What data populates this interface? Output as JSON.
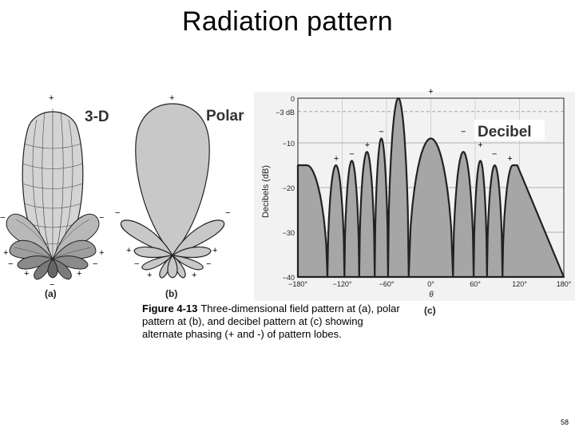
{
  "slide": {
    "title": "Radiation pattern",
    "page_number": "58"
  },
  "panels": {
    "a": {
      "title": "3-D",
      "label": "(a)"
    },
    "b": {
      "title": "Polar",
      "label": "(b)"
    },
    "c": {
      "title": "Decibel",
      "label": "(c)"
    }
  },
  "caption": {
    "figure_number": "Figure 4-13",
    "text": "Three-dimensional field pattern at (a), polar pattern at (b), and decibel pattern at (c) showing alternate phasing (+ and -) of pattern lobes."
  },
  "chart_data": {
    "type": "area",
    "title": "Decibel",
    "ylabel": "Decibels (dB)",
    "xlabel": "θ",
    "xlim": [
      -180,
      180
    ],
    "ylim": [
      -40,
      0
    ],
    "grid": true,
    "x_ticks": [
      "−180°",
      "−120°",
      "−60°",
      "0°",
      "60°",
      "120°",
      "180°"
    ],
    "y_ticks": [
      "0",
      "−3 dB",
      "−10",
      "−20",
      "−30",
      "−40"
    ],
    "y_tick_values": [
      0,
      -3,
      -10,
      -20,
      -30,
      -40
    ],
    "nulls_deg": [
      -140,
      -117,
      -97,
      -76,
      -58,
      -30,
      30,
      58,
      76,
      97,
      117,
      140
    ],
    "lobes": [
      {
        "center": -162,
        "peak": -15,
        "sign": ""
      },
      {
        "center": -128,
        "peak": -15,
        "sign": "+"
      },
      {
        "center": -107,
        "peak": -14,
        "sign": "−"
      },
      {
        "center": -86,
        "peak": -12,
        "sign": "+"
      },
      {
        "center": -67,
        "peak": -9,
        "sign": "−"
      },
      {
        "center": 0,
        "peak": 0,
        "sign": "+"
      },
      {
        "center": 44,
        "peak": -9,
        "sign": "−"
      },
      {
        "center": 67,
        "peak": -12,
        "sign": "+"
      },
      {
        "center": 86,
        "peak": -14,
        "sign": "−"
      },
      {
        "center": 107,
        "peak": -15,
        "sign": "+"
      },
      {
        "center": 162,
        "peak": -15,
        "sign": ""
      }
    ]
  }
}
